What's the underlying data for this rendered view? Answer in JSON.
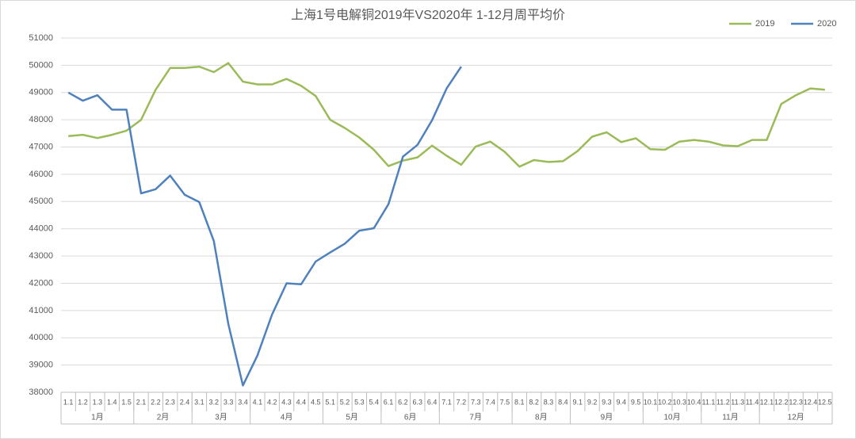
{
  "chart_data": {
    "type": "line",
    "title": "上海1号电解铜2019年VS2020年  1-12月周平均价",
    "groups": [
      {
        "name": "1月",
        "categories": [
          "1.1",
          "1.2",
          "1.3",
          "1.4",
          "1.5"
        ]
      },
      {
        "name": "2月",
        "categories": [
          "2.1",
          "2.2",
          "2.3",
          "2.4"
        ]
      },
      {
        "name": "3月",
        "categories": [
          "3.1",
          "3.2",
          "3.3",
          "3.4"
        ]
      },
      {
        "name": "4月",
        "categories": [
          "4.1",
          "4.2",
          "4.3",
          "4.4",
          "4.5"
        ]
      },
      {
        "name": "5月",
        "categories": [
          "5.1",
          "5.2",
          "5.3",
          "5.4"
        ]
      },
      {
        "name": "6月",
        "categories": [
          "6.1",
          "6.2",
          "6.3",
          "6.4"
        ]
      },
      {
        "name": "7月",
        "categories": [
          "7.1",
          "7.2",
          "7.3",
          "7.4",
          "7.5"
        ]
      },
      {
        "name": "8月",
        "categories": [
          "8.1",
          "8.2",
          "8.3",
          "8.4"
        ]
      },
      {
        "name": "9月",
        "categories": [
          "9.1",
          "9.2",
          "9.3",
          "9.4",
          "9.5"
        ]
      },
      {
        "name": "10月",
        "categories": [
          "10.1",
          "10.2",
          "10.3",
          "10.4"
        ]
      },
      {
        "name": "11月",
        "categories": [
          "11.1",
          "11.2",
          "11.3",
          "11.4"
        ]
      },
      {
        "name": "12月",
        "categories": [
          "12.1",
          "12.2",
          "12.3",
          "12.4",
          "12.5"
        ]
      }
    ],
    "series": [
      {
        "name": "2019",
        "color": "#9bbb59",
        "values": [
          47400,
          47450,
          47330,
          47450,
          47600,
          48000,
          49100,
          49900,
          49900,
          49950,
          49750,
          50080,
          49400,
          49300,
          49300,
          49500,
          49250,
          48870,
          48000,
          47700,
          47350,
          46900,
          46300,
          46500,
          46620,
          47050,
          46680,
          46350,
          47020,
          47200,
          46820,
          46280,
          46520,
          46450,
          46480,
          46850,
          47380,
          47540,
          47180,
          47320,
          46920,
          46900,
          47200,
          47260,
          47200,
          47060,
          47030,
          47260,
          47260,
          48580,
          48900,
          49150,
          49100
        ]
      },
      {
        "name": "2020",
        "color": "#4f81bd",
        "values": [
          49000,
          48700,
          48900,
          48370,
          48370,
          45300,
          45450,
          45950,
          45250,
          44980,
          43550,
          40500,
          38250,
          39350,
          40850,
          42000,
          41960,
          42800,
          43130,
          43450,
          43930,
          44020,
          44900,
          46650,
          47080,
          47980,
          49150,
          49950,
          null,
          null,
          null,
          null,
          null,
          null,
          null,
          null,
          null,
          null,
          null,
          null,
          null,
          null,
          null,
          null,
          null,
          null,
          null,
          null,
          null,
          null,
          null,
          null,
          null
        ]
      }
    ],
    "ylim": [
      38000,
      51000
    ],
    "yticks": [
      38000,
      39000,
      40000,
      41000,
      42000,
      43000,
      44000,
      45000,
      46000,
      47000,
      48000,
      49000,
      50000,
      51000
    ],
    "grid": true,
    "legend": "top-right"
  }
}
